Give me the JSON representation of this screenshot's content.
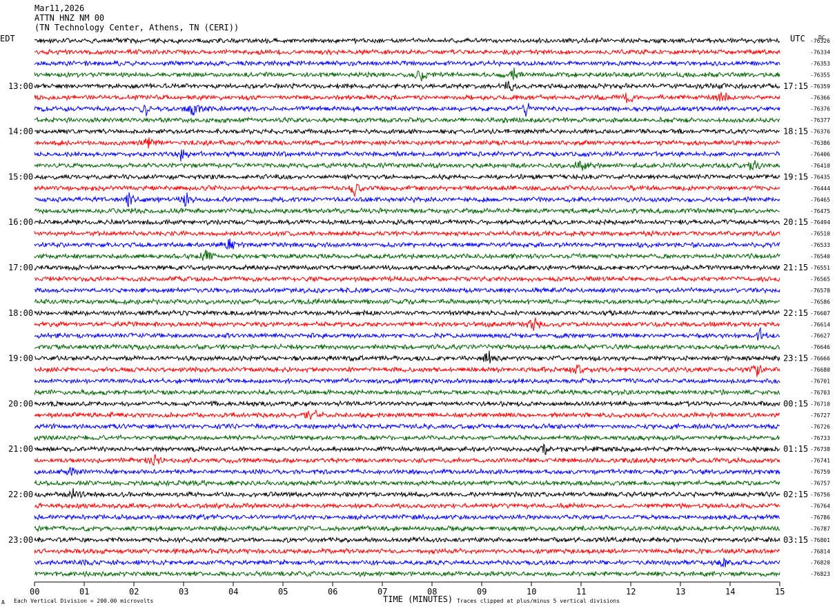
{
  "header": {
    "date": "Mar11,2026",
    "station": "ATTN HNZ NM 00",
    "location": "(TN Technology Center, Athens, TN (CERI))"
  },
  "left_tz": "EDT",
  "right_tz": "UTC",
  "dc_label": "DC",
  "footer": {
    "scale_note": "Each Vertical Division =  200.00 microvolts",
    "clip_note": "Traces clipped at plus/minus 5 vertical divisions",
    "corner_mark": "A"
  },
  "chart_data": {
    "type": "line",
    "title": "",
    "xlabel": "TIME (MINUTES)",
    "ylabel": "",
    "xlim": [
      0,
      15
    ],
    "xticks": [
      "00",
      "01",
      "02",
      "03",
      "04",
      "05",
      "06",
      "07",
      "08",
      "09",
      "10",
      "11",
      "12",
      "13",
      "14",
      "15"
    ],
    "rows": 48,
    "row_minutes": 15,
    "colors": [
      "#000000",
      "#ff0000",
      "#0000ff",
      "#006400"
    ],
    "left_hour_labels": [
      "13:00",
      "14:00",
      "15:00",
      "16:00",
      "17:00",
      "18:00",
      "19:00",
      "20:00",
      "21:00",
      "22:00",
      "23:00"
    ],
    "right_hour_labels": [
      "17:15",
      "18:15",
      "19:15",
      "20:15",
      "21:15",
      "22:15",
      "23:15",
      "00:15",
      "01:15",
      "02:15",
      "03:15"
    ],
    "dc_offsets": [
      "-76326",
      "-76334",
      "-76353",
      "-76355",
      "-76359",
      "-76366",
      "-76376",
      "-76377",
      "-76376",
      "-76386",
      "-76406",
      "-76410",
      "-76435",
      "-76444",
      "-76465",
      "-76475",
      "-76494",
      "-76510",
      "-76533",
      "-76540",
      "-76551",
      "-76565",
      "-76578",
      "-76586",
      "-76607",
      "-76614",
      "-76627",
      "-76646",
      "-76666",
      "-76680",
      "-76701",
      "-76703",
      "-76710",
      "-76727",
      "-76726",
      "-76733",
      "-76738",
      "-76741",
      "-76759",
      "-76757",
      "-76756",
      "-76764",
      "-76786",
      "-76787",
      "-76801",
      "-76814",
      "-76820",
      "-76823"
    ],
    "events": [
      {
        "row": 3,
        "minute": 9.65
      },
      {
        "row": 3,
        "minute": 7.8
      },
      {
        "row": 4,
        "minute": 9.55
      },
      {
        "row": 5,
        "minute": 11.95
      },
      {
        "row": 5,
        "minute": 13.85
      },
      {
        "row": 6,
        "minute": 2.25
      },
      {
        "row": 6,
        "minute": 3.2
      },
      {
        "row": 6,
        "minute": 9.9
      },
      {
        "row": 9,
        "minute": 2.3
      },
      {
        "row": 10,
        "minute": 2.95
      },
      {
        "row": 11,
        "minute": 11.0
      },
      {
        "row": 11,
        "minute": 14.45
      },
      {
        "row": 13,
        "minute": 6.45
      },
      {
        "row": 14,
        "minute": 3.05
      },
      {
        "row": 14,
        "minute": 1.9
      },
      {
        "row": 18,
        "minute": 3.95
      },
      {
        "row": 19,
        "minute": 3.45
      },
      {
        "row": 25,
        "minute": 10.05
      },
      {
        "row": 26,
        "minute": 14.6
      },
      {
        "row": 28,
        "minute": 9.15
      },
      {
        "row": 29,
        "minute": 10.9
      },
      {
        "row": 29,
        "minute": 14.55
      },
      {
        "row": 33,
        "minute": 5.6
      },
      {
        "row": 36,
        "minute": 10.25
      },
      {
        "row": 37,
        "minute": 2.4
      },
      {
        "row": 38,
        "minute": 0.75
      },
      {
        "row": 40,
        "minute": 0.8
      },
      {
        "row": 46,
        "minute": 13.85
      }
    ]
  }
}
